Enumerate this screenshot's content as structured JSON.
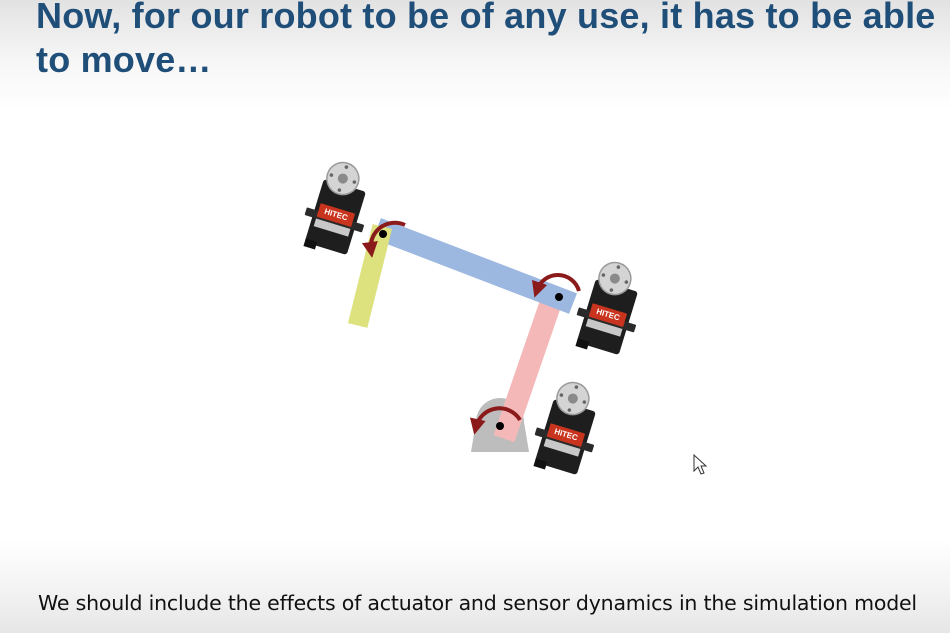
{
  "slide": {
    "title": "Now, for our robot to be of any use, it has to be able to move…",
    "caption": "We should include the effects of actuator and sensor dynamics in the simulation model"
  },
  "diagram": {
    "servo_label": "HITEC",
    "colors": {
      "base": "#bdbdbd",
      "link_lower": "#f4b8b8",
      "link_upper": "#9db8e0",
      "end_effector": "#dde27e",
      "rotation_arrow": "#8b1a1a",
      "joint_dot": "#000000",
      "servo_body": "#1e1e1e",
      "servo_label_bg": "#c8341d",
      "servo_horn": "#d4d4d4"
    },
    "icons": [
      "rotation-arrow-icon",
      "servo-motor-icon",
      "mouse-cursor-icon"
    ]
  }
}
